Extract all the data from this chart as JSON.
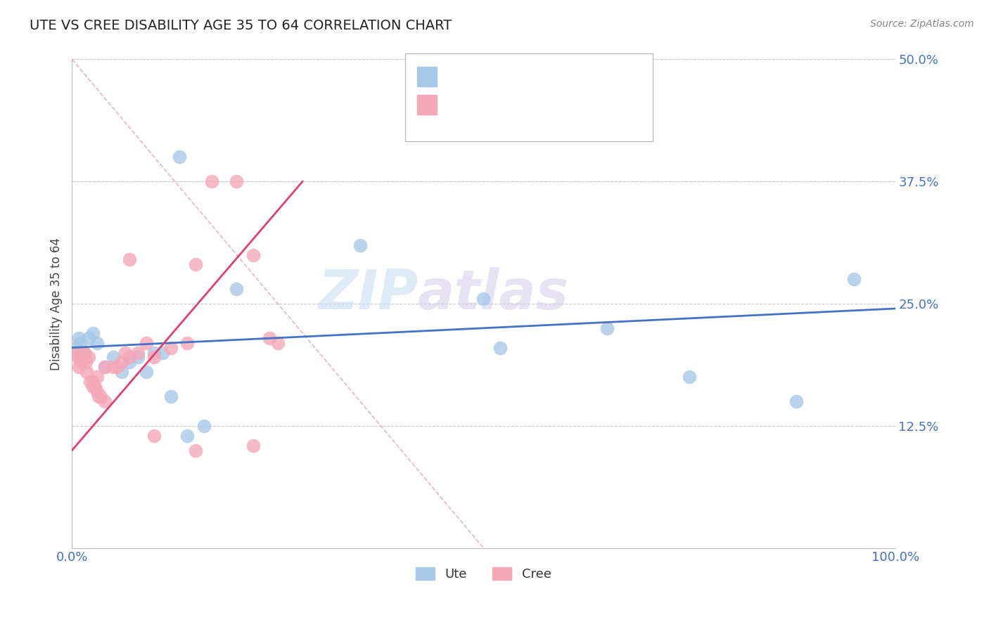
{
  "title": "UTE VS CREE DISABILITY AGE 35 TO 64 CORRELATION CHART",
  "source": "Source: ZipAtlas.com",
  "ylabel": "Disability Age 35 to 64",
  "xlim": [
    0,
    1.0
  ],
  "ylim": [
    0,
    0.5
  ],
  "yticks": [
    0.0,
    0.125,
    0.25,
    0.375,
    0.5
  ],
  "ytick_labels_right": [
    "",
    "12.5%",
    "25.0%",
    "37.5%",
    "50.0%"
  ],
  "xtick_labels": [
    "0.0%",
    "",
    "",
    "",
    "",
    "",
    "",
    "",
    "",
    "",
    "100.0%"
  ],
  "ute_color": "#A8C8E8",
  "cree_color": "#F4A8B8",
  "ute_line_color": "#4472C4",
  "cree_line_color": "#E04070",
  "ref_line_color": "#E8A0B0",
  "legend_text_color": "#4472C4",
  "label_color": "#4472C4",
  "watermark_color": "#C8DCF0",
  "watermark_color2": "#D0C8E8",
  "grid_color": "#C8C8C8",
  "background_color": "#FFFFFF",
  "ute_x": [
    0.005,
    0.008,
    0.01,
    0.015,
    0.02,
    0.025,
    0.03,
    0.04,
    0.05,
    0.06,
    0.07,
    0.08,
    0.09,
    0.12,
    0.14,
    0.16,
    0.2,
    0.35,
    0.5,
    0.52,
    0.65,
    0.75,
    0.88,
    0.95,
    0.1,
    0.11,
    0.13
  ],
  "ute_y": [
    0.205,
    0.215,
    0.21,
    0.2,
    0.215,
    0.22,
    0.21,
    0.185,
    0.195,
    0.18,
    0.19,
    0.195,
    0.18,
    0.155,
    0.115,
    0.125,
    0.265,
    0.31,
    0.255,
    0.205,
    0.225,
    0.175,
    0.15,
    0.275,
    0.2,
    0.2,
    0.4
  ],
  "cree_x": [
    0.005,
    0.007,
    0.008,
    0.01,
    0.012,
    0.013,
    0.015,
    0.016,
    0.017,
    0.018,
    0.02,
    0.022,
    0.025,
    0.025,
    0.028,
    0.03,
    0.03,
    0.032,
    0.035,
    0.04,
    0.04,
    0.05,
    0.055,
    0.06,
    0.065,
    0.07,
    0.08,
    0.09,
    0.1,
    0.12,
    0.14,
    0.15,
    0.17,
    0.2,
    0.22,
    0.24,
    0.25,
    0.07,
    0.1,
    0.15,
    0.22
  ],
  "cree_y": [
    0.2,
    0.195,
    0.185,
    0.19,
    0.195,
    0.2,
    0.2,
    0.195,
    0.19,
    0.18,
    0.195,
    0.17,
    0.165,
    0.17,
    0.165,
    0.175,
    0.16,
    0.155,
    0.155,
    0.15,
    0.185,
    0.185,
    0.185,
    0.19,
    0.2,
    0.195,
    0.2,
    0.21,
    0.195,
    0.205,
    0.21,
    0.29,
    0.375,
    0.375,
    0.3,
    0.215,
    0.21,
    0.295,
    0.115,
    0.1,
    0.105
  ],
  "ute_trend_x": [
    0.0,
    1.0
  ],
  "ute_trend_y": [
    0.205,
    0.245
  ],
  "cree_trend_x": [
    0.0,
    0.28
  ],
  "cree_trend_y": [
    0.1,
    0.375
  ],
  "ref_line_x": [
    0.0,
    0.5
  ],
  "ref_line_y": [
    0.5,
    0.0
  ]
}
